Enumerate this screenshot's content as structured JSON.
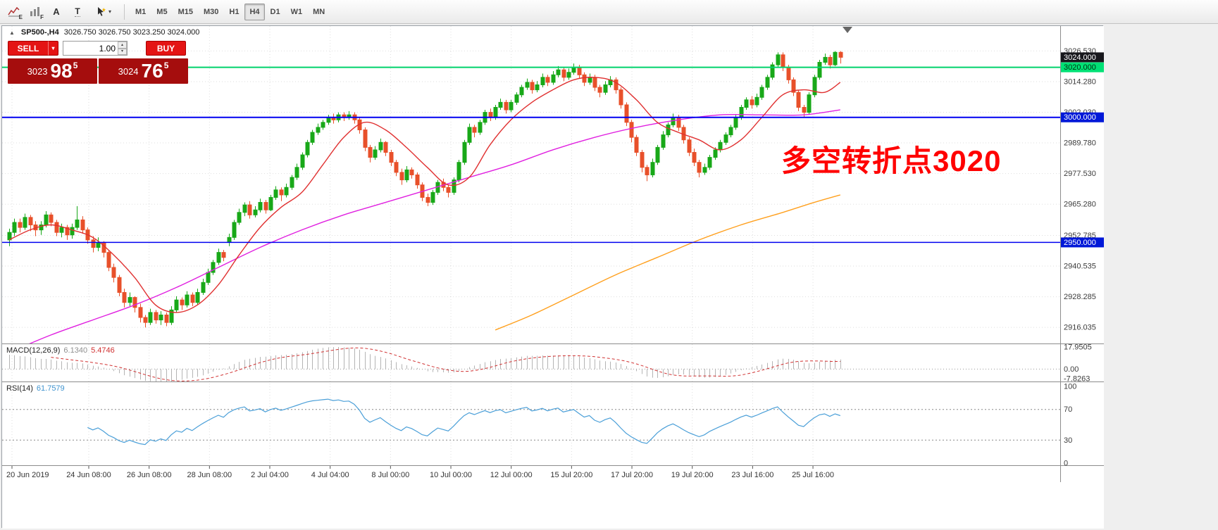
{
  "icons": {
    "collapse": "▲",
    "caret_up": "▴",
    "caret_down": "▾"
  },
  "toolbar": {
    "icons": [
      {
        "label": "E"
      },
      {
        "label": "F"
      },
      {
        "label": "A"
      },
      {
        "label": "T"
      },
      {
        "label": "▾"
      }
    ],
    "timeframes": [
      {
        "label": "M1"
      },
      {
        "label": "M5"
      },
      {
        "label": "M15"
      },
      {
        "label": "M30"
      },
      {
        "label": "H1"
      },
      {
        "label": "H4",
        "active": true
      },
      {
        "label": "D1"
      },
      {
        "label": "W1"
      },
      {
        "label": "MN"
      }
    ]
  },
  "chart": {
    "title": {
      "symbol": "SP500-,H4",
      "ohlc": "3026.750 3026.750 3023.250 3024.000"
    },
    "trade_panel": {
      "sell_label": "SELL",
      "buy_label": "BUY",
      "volume": "1.00",
      "button_color": "#e41414",
      "panel_color": "#a50d0d",
      "sell_price": {
        "prefix": "3023",
        "main": "98",
        "sup": "5"
      },
      "buy_price": {
        "prefix": "3024",
        "main": "76",
        "sup": "5"
      }
    },
    "annotation": {
      "text": "多空转折点3020",
      "color": "#FF0000"
    }
  },
  "indicators": {
    "macd": {
      "name": "MACD(12,26,9)",
      "value_main": "6.1340",
      "value_signal": "5.4746",
      "scale": {
        "top": "17.9505",
        "zero": "0.00",
        "bottom": "-7.8263"
      }
    },
    "rsi": {
      "name": "RSI(14)",
      "value": "61.7579",
      "scale": [
        "100",
        "70",
        "30",
        "0"
      ]
    }
  },
  "time_axis": {
    "labels": [
      "20 Jun 2019",
      "24 Jun 08:00",
      "26 Jun 08:00",
      "28 Jun 08:00",
      "2 Jul 04:00",
      "4 Jul 04:00",
      "8 Jul 00:00",
      "10 Jul 00:00",
      "12 Jul 00:00",
      "15 Jul 20:00",
      "17 Jul 20:00",
      "19 Jul 20:00",
      "23 Jul 16:00",
      "25 Jul 16:00"
    ]
  },
  "chart_data": {
    "type": "candlestick",
    "symbol": "SP500-",
    "timeframe": "H4",
    "ylim": [
      2909.6,
      3036.5
    ],
    "price_ticks": [
      3026.53,
      3014.28,
      3002.03,
      2989.78,
      2977.53,
      2965.28,
      2952.785,
      2940.535,
      2928.285,
      2916.035
    ],
    "last_ohlc": [
      3026.75,
      3026.75,
      3023.25,
      3024.0
    ],
    "up_color": "#18a818",
    "down_color": "#e8502a",
    "hlines": [
      {
        "price": 3020.0,
        "color": "#00d26b",
        "width": 2,
        "label": "3020.000",
        "label_bg": "#00e175",
        "label_fg": "#00310f"
      },
      {
        "price": 3000.0,
        "color": "#0000f0",
        "width": 2,
        "label": "3000.000",
        "label_bg": "#0018d8",
        "label_fg": "#ffffff"
      },
      {
        "price": 2950.0,
        "color": "#0000f0",
        "width": 1.5,
        "label": "2950.000",
        "label_bg": "#0018d8",
        "label_fg": "#ffffff"
      }
    ],
    "current_price": {
      "value": 3024.0,
      "label": "3024.000",
      "label_bg": "#17171c",
      "label_fg": "#ffffff"
    },
    "candles": [
      [
        2951,
        2955.5,
        2948.5,
        2954
      ],
      [
        2954,
        2959.5,
        2952.5,
        2958
      ],
      [
        2958,
        2959.5,
        2954,
        2956
      ],
      [
        2956,
        2961.5,
        2955,
        2960
      ],
      [
        2960,
        2961,
        2954.5,
        2957
      ],
      [
        2957,
        2958.5,
        2952.5,
        2955
      ],
      [
        2955,
        2958.5,
        2953,
        2957
      ],
      [
        2957,
        2962.5,
        2956,
        2961
      ],
      [
        2961,
        2962,
        2956.5,
        2958
      ],
      [
        2958,
        2959,
        2952.5,
        2954
      ],
      [
        2954,
        2957.5,
        2952,
        2956
      ],
      [
        2956,
        2957,
        2951,
        2953
      ],
      [
        2953,
        2957.5,
        2951.5,
        2956
      ],
      [
        2956,
        2964.5,
        2955,
        2959
      ],
      [
        2959,
        2960.5,
        2953.5,
        2955
      ],
      [
        2955,
        2956,
        2949.5,
        2951
      ],
      [
        2951,
        2952.5,
        2946,
        2948
      ],
      [
        2948,
        2952,
        2946.5,
        2950
      ],
      [
        2950,
        2950.5,
        2944,
        2946
      ],
      [
        2946,
        2947,
        2938.5,
        2940
      ],
      [
        2940,
        2941.5,
        2934,
        2936
      ],
      [
        2936,
        2937,
        2928.5,
        2930
      ],
      [
        2930,
        2931.5,
        2924,
        2926
      ],
      [
        2926,
        2930,
        2924.5,
        2928
      ],
      [
        2928,
        2928.5,
        2922,
        2924
      ],
      [
        2924,
        2925.5,
        2918,
        2920
      ],
      [
        2920,
        2921,
        2916,
        2918
      ],
      [
        2918,
        2923.5,
        2917,
        2922
      ],
      [
        2922,
        2923,
        2917.5,
        2919
      ],
      [
        2919,
        2922.5,
        2917,
        2921
      ],
      [
        2921,
        2922,
        2916.5,
        2918
      ],
      [
        2918,
        2924.5,
        2917,
        2923
      ],
      [
        2923,
        2928.5,
        2922,
        2927
      ],
      [
        2927,
        2928,
        2923,
        2925
      ],
      [
        2925,
        2930.5,
        2924,
        2929
      ],
      [
        2929,
        2930,
        2924.5,
        2926
      ],
      [
        2926,
        2931.5,
        2925,
        2930
      ],
      [
        2930,
        2935.5,
        2929,
        2934
      ],
      [
        2934,
        2939.5,
        2933,
        2938
      ],
      [
        2938,
        2943,
        2937,
        2942
      ],
      [
        2942,
        2947.5,
        2941,
        2946
      ],
      [
        2946,
        2947,
        2942.5,
        2944
      ],
      [
        2950,
        2953.5,
        2948.5,
        2952
      ],
      [
        2952,
        2959,
        2951,
        2958
      ],
      [
        2958,
        2963.5,
        2957,
        2962
      ],
      [
        2962,
        2966,
        2960.5,
        2965
      ],
      [
        2965,
        2966.5,
        2959.5,
        2961
      ],
      [
        2961,
        2964.5,
        2960,
        2963
      ],
      [
        2963,
        2967.5,
        2962,
        2966
      ],
      [
        2966,
        2967,
        2961.5,
        2963
      ],
      [
        2963,
        2969,
        2962.5,
        2968
      ],
      [
        2968,
        2972.5,
        2967,
        2971
      ],
      [
        2971,
        2972,
        2966.5,
        2969
      ],
      [
        2969,
        2973.5,
        2968,
        2972
      ],
      [
        2972,
        2977,
        2971,
        2976
      ],
      [
        2976,
        2981.5,
        2975,
        2980
      ],
      [
        2980,
        2986,
        2979,
        2985
      ],
      [
        2985,
        2991,
        2984,
        2990
      ],
      [
        2990,
        2995,
        2989,
        2994
      ],
      [
        2994,
        2997.5,
        2993,
        2996
      ],
      [
        2996,
        2999,
        2995,
        2998
      ],
      [
        2998,
        3001,
        2997,
        3000
      ],
      [
        3000,
        3001.5,
        2997.5,
        2999
      ],
      [
        2999,
        3002,
        2998,
        3001
      ],
      [
        3001,
        3002,
        2998.5,
        3000
      ],
      [
        3000,
        3002.5,
        2999,
        3001
      ],
      [
        3001,
        3002,
        2997.5,
        2999
      ],
      [
        2999,
        3000,
        2993.5,
        2995
      ],
      [
        2995,
        2996,
        2986.5,
        2988
      ],
      [
        2988,
        2989,
        2982,
        2984
      ],
      [
        2984,
        2988.5,
        2983,
        2987
      ],
      [
        2987,
        2991.5,
        2986,
        2990
      ],
      [
        2990,
        2990.5,
        2984.5,
        2986
      ],
      [
        2986,
        2987,
        2980.5,
        2982
      ],
      [
        2982,
        2983,
        2976.5,
        2978
      ],
      [
        2978,
        2979.5,
        2973,
        2975
      ],
      [
        2975,
        2980.5,
        2974,
        2979
      ],
      [
        2979,
        2980,
        2975.5,
        2977
      ],
      [
        2977,
        2978,
        2971.5,
        2973
      ],
      [
        2973,
        2974,
        2966.5,
        2968
      ],
      [
        2968,
        2969.5,
        2964.5,
        2966
      ],
      [
        2966,
        2971,
        2965,
        2970
      ],
      [
        2970,
        2975,
        2969,
        2974
      ],
      [
        2974,
        2975.5,
        2970.5,
        2972
      ],
      [
        2972,
        2973,
        2968,
        2970
      ],
      [
        2970,
        2976,
        2969,
        2975
      ],
      [
        2975,
        2983,
        2974,
        2982
      ],
      [
        2982,
        2991,
        2981,
        2990
      ],
      [
        2990,
        2997.5,
        2989,
        2996
      ],
      [
        2996,
        2997,
        2992,
        2994
      ],
      [
        2994,
        2999,
        2993,
        2998
      ],
      [
        2998,
        3003,
        2997,
        3002
      ],
      [
        3002,
        3003.5,
        2998.5,
        3000
      ],
      [
        3000,
        3005,
        2999,
        3004
      ],
      [
        3004,
        3007.5,
        3003,
        3006
      ],
      [
        3006,
        3007,
        3001.5,
        3003
      ],
      [
        3003,
        3007,
        3002,
        3006
      ],
      [
        3006,
        3010,
        3005,
        3009
      ],
      [
        3009,
        3013,
        3008,
        3012
      ],
      [
        3012,
        3015.5,
        3011,
        3014
      ],
      [
        3014,
        3015,
        3009.5,
        3011
      ],
      [
        3011,
        3014.5,
        3010,
        3013
      ],
      [
        3013,
        3017.5,
        3012,
        3016
      ],
      [
        3016,
        3017,
        3012.5,
        3014
      ],
      [
        3014,
        3018.5,
        3013,
        3017
      ],
      [
        3017,
        3020.5,
        3016,
        3019
      ],
      [
        3019,
        3020,
        3014.5,
        3016
      ],
      [
        3016,
        3019.5,
        3015,
        3018
      ],
      [
        3018,
        3021.5,
        3017,
        3020
      ],
      [
        3020,
        3021,
        3015.5,
        3017
      ],
      [
        3017,
        3018,
        3012.5,
        3014
      ],
      [
        3014,
        3017.5,
        3013,
        3016
      ],
      [
        3016,
        3017,
        3010.5,
        3012
      ],
      [
        3012,
        3013,
        3008,
        3010
      ],
      [
        3010,
        3014.5,
        3009,
        3013
      ],
      [
        3013,
        3016.5,
        3012,
        3015
      ],
      [
        3015,
        3016,
        3009.5,
        3011
      ],
      [
        3011,
        3012,
        3003.5,
        3005
      ],
      [
        3005,
        3006,
        2996.5,
        2998
      ],
      [
        2998,
        2999,
        2990,
        2992
      ],
      [
        2992,
        2993,
        2984.5,
        2986
      ],
      [
        2986,
        2987,
        2978,
        2980
      ],
      [
        2980,
        2981,
        2974.5,
        2977
      ],
      [
        2977,
        2983.5,
        2976,
        2982
      ],
      [
        2982,
        2989,
        2981,
        2988
      ],
      [
        2988,
        2994.5,
        2987,
        2993
      ],
      [
        2993,
        2998,
        2992,
        2997
      ],
      [
        2997,
        3001.5,
        2996,
        3000
      ],
      [
        3000,
        3001,
        2994.5,
        2996
      ],
      [
        2996,
        2997,
        2989.5,
        2991
      ],
      [
        2991,
        2992,
        2984.5,
        2986
      ],
      [
        2986,
        2987.5,
        2980.5,
        2982
      ],
      [
        2982,
        2983,
        2976,
        2978
      ],
      [
        2978,
        2981.5,
        2977,
        2980
      ],
      [
        2980,
        2985,
        2979,
        2984
      ],
      [
        2984,
        2988,
        2983,
        2987
      ],
      [
        2987,
        2991,
        2986,
        2990
      ],
      [
        2990,
        2994,
        2989,
        2993
      ],
      [
        2993,
        2997,
        2992,
        2996
      ],
      [
        2996,
        3001,
        2995,
        3000
      ],
      [
        3000,
        3005,
        2999,
        3004
      ],
      [
        3004,
        3008,
        3003,
        3007
      ],
      [
        3007,
        3008.5,
        3003.5,
        3005
      ],
      [
        3005,
        3009.5,
        3004,
        3008
      ],
      [
        3008,
        3013,
        3007,
        3012
      ],
      [
        3012,
        3017,
        3011,
        3016
      ],
      [
        3016,
        3022,
        3015,
        3021
      ],
      [
        3021,
        3026,
        3020,
        3025
      ],
      [
        3025,
        3026,
        3018.5,
        3020
      ],
      [
        3020,
        3021,
        3013.5,
        3015
      ],
      [
        3015,
        3016,
        3008.5,
        3010
      ],
      [
        3010,
        3011,
        3002.5,
        3004
      ],
      [
        3004,
        3005,
        3000,
        3002
      ],
      [
        3002,
        3010,
        3001,
        3009
      ],
      [
        3009,
        3017,
        3008,
        3016
      ],
      [
        3016,
        3023,
        3015,
        3022
      ],
      [
        3022,
        3025.5,
        3021,
        3024
      ],
      [
        3024,
        3025,
        3019.5,
        3021
      ],
      [
        3021,
        3026.5,
        3020.5,
        3026
      ],
      [
        3026,
        3026.5,
        3021.5,
        3024
      ]
    ],
    "ma_fast": {
      "color": "#e03030",
      "points": [
        [
          0,
          2951
        ],
        [
          4,
          2955
        ],
        [
          8,
          2957
        ],
        [
          12,
          2955
        ],
        [
          16,
          2952
        ],
        [
          20,
          2945
        ],
        [
          24,
          2936
        ],
        [
          28,
          2925
        ],
        [
          32,
          2922
        ],
        [
          36,
          2925
        ],
        [
          40,
          2933
        ],
        [
          44,
          2945
        ],
        [
          48,
          2956
        ],
        [
          52,
          2964
        ],
        [
          56,
          2970
        ],
        [
          60,
          2981
        ],
        [
          64,
          2992
        ],
        [
          68,
          2998
        ],
        [
          72,
          2995
        ],
        [
          76,
          2988
        ],
        [
          80,
          2980
        ],
        [
          84,
          2973
        ],
        [
          88,
          2976
        ],
        [
          92,
          2989
        ],
        [
          96,
          2999
        ],
        [
          100,
          3006
        ],
        [
          104,
          3011
        ],
        [
          108,
          3015
        ],
        [
          112,
          3016
        ],
        [
          116,
          3014
        ],
        [
          120,
          3007
        ],
        [
          124,
          2998
        ],
        [
          128,
          2994
        ],
        [
          132,
          2991
        ],
        [
          136,
          2987
        ],
        [
          140,
          2991
        ],
        [
          144,
          3000
        ],
        [
          148,
          3009
        ],
        [
          152,
          3011
        ],
        [
          156,
          3010
        ],
        [
          159,
          3014
        ]
      ]
    },
    "ma_mid": {
      "color": "#e020e0",
      "points": [
        [
          0,
          2906
        ],
        [
          8,
          2913
        ],
        [
          16,
          2919
        ],
        [
          24,
          2925
        ],
        [
          32,
          2932
        ],
        [
          40,
          2940
        ],
        [
          48,
          2948
        ],
        [
          56,
          2955
        ],
        [
          64,
          2961
        ],
        [
          72,
          2966
        ],
        [
          80,
          2971
        ],
        [
          88,
          2976
        ],
        [
          96,
          2981
        ],
        [
          104,
          2987
        ],
        [
          112,
          2992
        ],
        [
          120,
          2996
        ],
        [
          128,
          2999
        ],
        [
          136,
          3001
        ],
        [
          144,
          3001
        ],
        [
          152,
          3001
        ],
        [
          159,
          3003
        ]
      ]
    },
    "ma_slow": {
      "color": "#ffa01e",
      "points": [
        [
          93,
          2915
        ],
        [
          100,
          2921
        ],
        [
          108,
          2929
        ],
        [
          116,
          2937
        ],
        [
          124,
          2944
        ],
        [
          132,
          2951
        ],
        [
          140,
          2957
        ],
        [
          148,
          2962
        ],
        [
          154,
          2966
        ],
        [
          159,
          2969
        ]
      ]
    },
    "macd": {
      "hist_color": "#b4b4b4",
      "signal_color": "#d03030",
      "scale_top": 17.9505,
      "scale_bottom": -7.8263
    },
    "rsi": {
      "color": "#4a9fd8",
      "period": 14,
      "levels": [
        70,
        30
      ]
    }
  }
}
